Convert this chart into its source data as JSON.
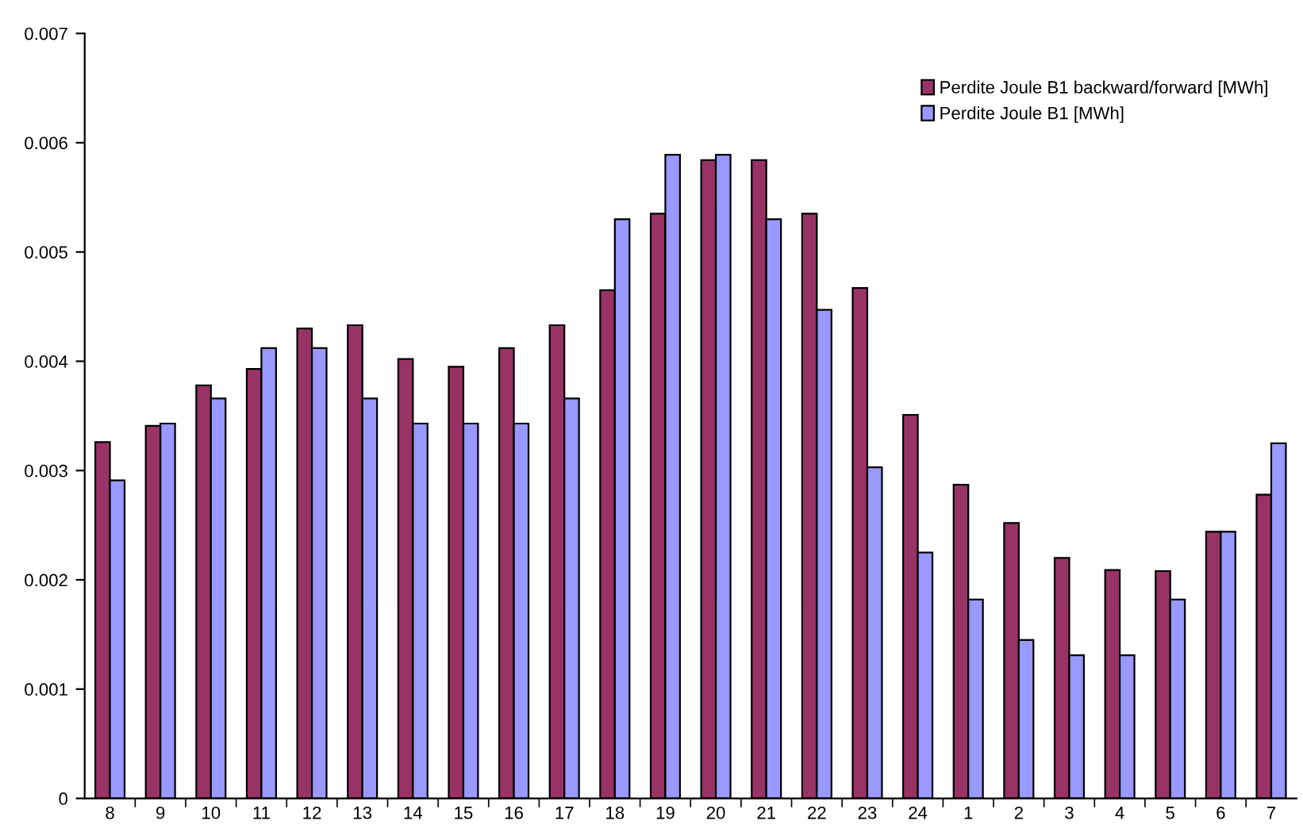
{
  "chart_data": {
    "type": "bar",
    "categories": [
      "8",
      "9",
      "10",
      "11",
      "12",
      "13",
      "14",
      "15",
      "16",
      "17",
      "18",
      "19",
      "20",
      "21",
      "22",
      "23",
      "24",
      "1",
      "2",
      "3",
      "4",
      "5",
      "6",
      "7"
    ],
    "series": [
      {
        "name": "Perdite Joule B1 backward/forward [MWh]",
        "color": "#993366",
        "values": [
          0.00326,
          0.00341,
          0.00378,
          0.00393,
          0.0043,
          0.00433,
          0.00402,
          0.00395,
          0.00412,
          0.00433,
          0.00465,
          0.00535,
          0.00584,
          0.00584,
          0.00535,
          0.00467,
          0.00351,
          0.00287,
          0.00252,
          0.0022,
          0.00209,
          0.00208,
          0.00244,
          0.00278
        ]
      },
      {
        "name": "Perdite Joule B1 [MWh]",
        "color": "#9999ff",
        "values": [
          0.00291,
          0.00343,
          0.00366,
          0.00412,
          0.00412,
          0.00366,
          0.00343,
          0.00343,
          0.00343,
          0.00366,
          0.0053,
          0.00589,
          0.00589,
          0.0053,
          0.00447,
          0.00303,
          0.00225,
          0.00182,
          0.00145,
          0.00131,
          0.00131,
          0.00182,
          0.00244,
          0.00325
        ]
      }
    ],
    "ylim": [
      0,
      0.007
    ],
    "yticks": [
      0,
      0.001,
      0.002,
      0.003,
      0.004,
      0.005,
      0.006,
      0.007
    ],
    "grid": false,
    "legend": "top right"
  }
}
